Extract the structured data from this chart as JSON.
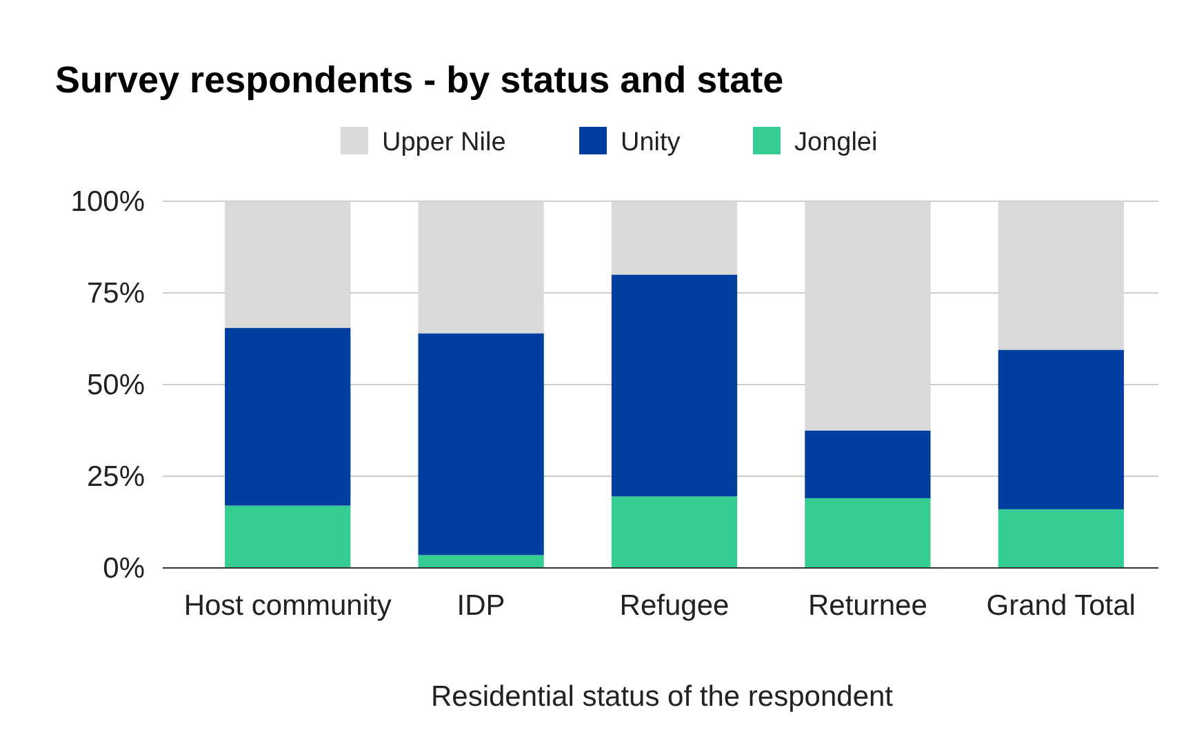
{
  "chart_data": {
    "type": "bar",
    "title": "Survey respondents - by status and state",
    "xlabel": "Residential status of the respondent",
    "categories": [
      "Host community",
      "IDP",
      "Refugee",
      "Returnee",
      "Grand Total"
    ],
    "stacked": true,
    "series": [
      {
        "name": "Jonglei",
        "color": "#35cd92",
        "values": [
          17,
          3.5,
          19.5,
          19,
          16
        ]
      },
      {
        "name": "Unity",
        "color": "#003f9f",
        "values": [
          48.5,
          60.5,
          60.5,
          18.5,
          43.5
        ]
      },
      {
        "name": "Upper Nile",
        "color": "#d9d9d9",
        "values": [
          34.5,
          36,
          20,
          62.5,
          40.5
        ]
      }
    ],
    "ylim": [
      0,
      100
    ],
    "yticks": [
      {
        "value": 0,
        "label": "0%"
      },
      {
        "value": 25,
        "label": "25%"
      },
      {
        "value": 50,
        "label": "50%"
      },
      {
        "value": 75,
        "label": "75%"
      },
      {
        "value": 100,
        "label": "100%"
      }
    ],
    "grid": "y",
    "legend": "top"
  }
}
